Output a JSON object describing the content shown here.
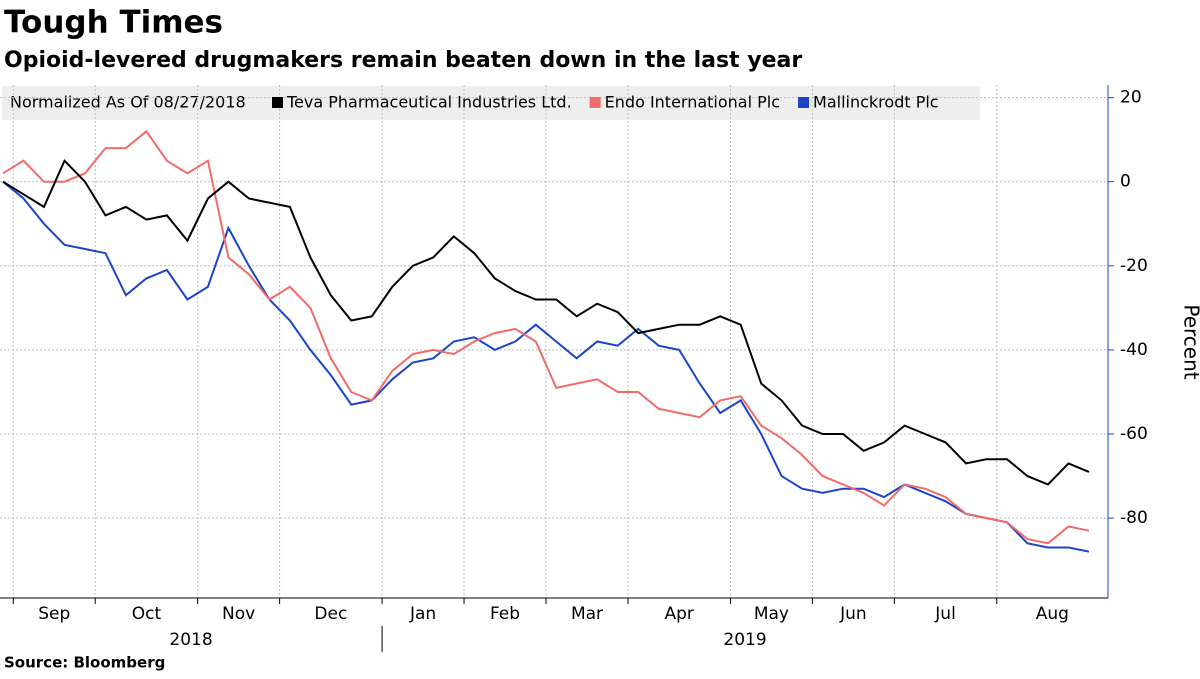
{
  "chart_data": {
    "type": "line",
    "title": "Tough Times",
    "subtitle": "Opioid-levered drugmakers remain beaten down in the last year",
    "legend_title": "Normalized As Of 08/27/2018",
    "y_label": "Percent",
    "source": "Source: Bloomberg",
    "categories": [
      null,
      "Sep",
      null,
      null,
      null,
      "Oct",
      null,
      null,
      null,
      null,
      "Nov",
      null,
      null,
      null,
      "Dec",
      null,
      null,
      null,
      null,
      "Jan",
      null,
      null,
      null,
      "Feb",
      null,
      null,
      null,
      "Mar",
      null,
      null,
      null,
      "Apr",
      null,
      null,
      null,
      null,
      "May",
      null,
      null,
      null,
      "Jun",
      null,
      null,
      null,
      "Jul",
      null,
      null,
      null,
      null,
      "Aug",
      null,
      null,
      null,
      null
    ],
    "x_groups": [
      {
        "label": "2018",
        "start": 0
      },
      {
        "label": "2019",
        "start": 19
      }
    ],
    "series": [
      {
        "name": "Teva Pharmaceutical Industries Ltd.",
        "color": "#000000",
        "values": [
          0,
          -3,
          -6,
          5,
          0,
          -8,
          -6,
          -9,
          -8,
          -14,
          -4,
          0,
          -4,
          -5,
          -6,
          -18,
          -27,
          -33,
          -32,
          -25,
          -20,
          -18,
          -13,
          -17,
          -23,
          -26,
          -28,
          -28,
          -32,
          -29,
          -31,
          -36,
          -35,
          -34,
          -34,
          -32,
          -34,
          -48,
          -52,
          -58,
          -60,
          -60,
          -64,
          -62,
          -58,
          -60,
          -62,
          -67,
          -66,
          -66,
          -70,
          -72,
          -67,
          -69
        ]
      },
      {
        "name": "Endo International Plc",
        "color": "#f26b6b",
        "values": [
          2,
          5,
          0,
          0,
          2,
          8,
          8,
          12,
          5,
          2,
          5,
          -18,
          -22,
          -28,
          -25,
          -30,
          -42,
          -50,
          -52,
          -45,
          -41,
          -40,
          -41,
          -38,
          -36,
          -35,
          -38,
          -49,
          -48,
          -47,
          -50,
          -50,
          -54,
          -55,
          -56,
          -52,
          -51,
          -58,
          -61,
          -65,
          -70,
          -72,
          -74,
          -77,
          -72,
          -73,
          -75,
          -79,
          -80,
          -81,
          -85,
          -86,
          -82,
          -83
        ]
      },
      {
        "name": "Mallinckrodt Plc",
        "color": "#1a45c9",
        "values": [
          0,
          -4,
          -10,
          -15,
          -16,
          -17,
          -27,
          -23,
          -21,
          -28,
          -25,
          -11,
          -20,
          -28,
          -33,
          -40,
          -46,
          -53,
          -52,
          -47,
          -43,
          -42,
          -38,
          -37,
          -40,
          -38,
          -34,
          -38,
          -42,
          -38,
          -39,
          -35,
          -39,
          -40,
          -48,
          -55,
          -52,
          -60,
          -70,
          -73,
          -74,
          -73,
          -73,
          -75,
          -72,
          -74,
          -76,
          -79,
          -80,
          -81,
          -86,
          -87,
          -87,
          -88
        ]
      }
    ],
    "ylim": [
      -99,
      23
    ],
    "yticks": [
      20,
      0,
      -20,
      -40,
      -60,
      -80
    ],
    "grid": true
  }
}
